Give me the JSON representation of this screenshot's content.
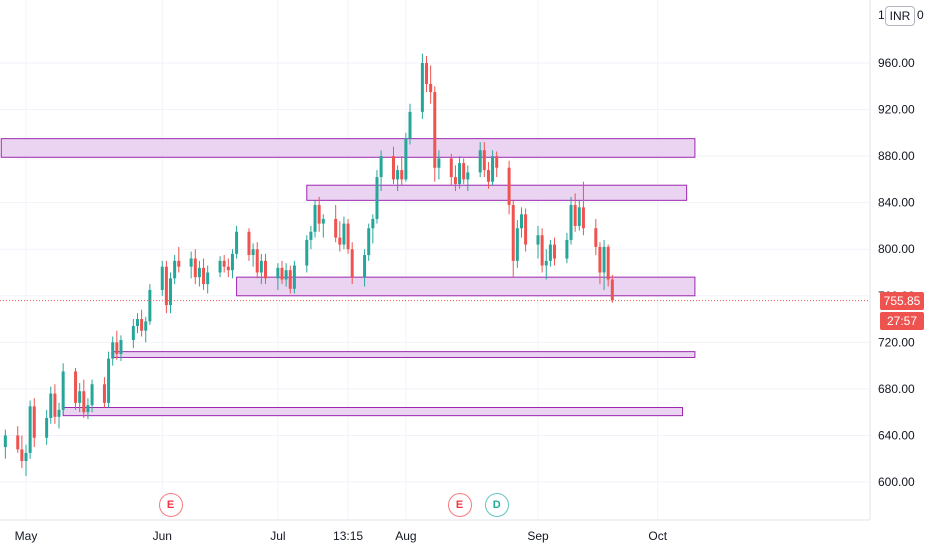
{
  "currency": "INR",
  "last_price_label": "755.85",
  "countdown_label": "27:57",
  "axis_top_partial": "1",
  "axis_top_partial_right": "0",
  "colors": {
    "up": "#26a69a",
    "down": "#ef5350",
    "zone_fill": "#e7cdee",
    "zone_border": "#9c27b0",
    "grid": "#f0f3fa"
  },
  "events": [
    {
      "label": "E",
      "type": "earnings",
      "x": "Jun 5"
    },
    {
      "label": "E",
      "type": "earnings",
      "x": "Aug 14"
    },
    {
      "label": "D",
      "type": "dividend",
      "x": "Aug 23"
    }
  ],
  "chart_data": {
    "type": "candlestick",
    "ylim": [
      584,
      975
    ],
    "y_ticks": [
      600,
      640,
      680,
      720,
      760,
      800,
      840,
      880,
      920,
      960
    ],
    "y_tick_labels": [
      "600.00",
      "640.00",
      "680.00",
      "720.00",
      "760.00",
      "800.00",
      "840.00",
      "880.00",
      "920.00",
      "960.00"
    ],
    "x_labels": [
      "May",
      "Jun",
      "Jul",
      "13:15",
      "Aug",
      "Sep",
      "Oct"
    ],
    "last_price": 755.85,
    "zones": [
      {
        "from": "Apr 25",
        "to": "Oct 10",
        "low": 879,
        "high": 895
      },
      {
        "from": "Jul 8",
        "to": "Oct 8",
        "low": 842,
        "high": 855
      },
      {
        "from": "Jun 21",
        "to": "Oct 10",
        "low": 760,
        "high": 776
      },
      {
        "from": "May 22",
        "to": "Oct 10",
        "low": 707,
        "high": 712
      },
      {
        "from": "May 10",
        "to": "Oct 7",
        "low": 657,
        "high": 664
      }
    ],
    "candles": [
      {
        "d": "Apr 26",
        "o": 630,
        "h": 645,
        "l": 620,
        "c": 640
      },
      {
        "d": "Apr 29",
        "o": 640,
        "h": 648,
        "l": 625,
        "c": 628
      },
      {
        "d": "Apr 30",
        "o": 628,
        "h": 640,
        "l": 612,
        "c": 618
      },
      {
        "d": "May 1",
        "o": 618,
        "h": 632,
        "l": 605,
        "c": 625
      },
      {
        "d": "May 2",
        "o": 625,
        "h": 670,
        "l": 620,
        "c": 665
      },
      {
        "d": "May 3",
        "o": 665,
        "h": 672,
        "l": 630,
        "c": 638
      },
      {
        "d": "May 6",
        "o": 638,
        "h": 662,
        "l": 632,
        "c": 655
      },
      {
        "d": "May 7",
        "o": 655,
        "h": 682,
        "l": 650,
        "c": 676
      },
      {
        "d": "May 8",
        "o": 676,
        "h": 684,
        "l": 650,
        "c": 656
      },
      {
        "d": "May 9",
        "o": 656,
        "h": 668,
        "l": 646,
        "c": 662
      },
      {
        "d": "May 10",
        "o": 662,
        "h": 702,
        "l": 658,
        "c": 695
      },
      {
        "d": "May 13",
        "o": 695,
        "h": 698,
        "l": 662,
        "c": 668
      },
      {
        "d": "May 14",
        "o": 668,
        "h": 685,
        "l": 660,
        "c": 678
      },
      {
        "d": "May 15",
        "o": 678,
        "h": 688,
        "l": 655,
        "c": 660
      },
      {
        "d": "May 16",
        "o": 660,
        "h": 672,
        "l": 654,
        "c": 666
      },
      {
        "d": "May 17",
        "o": 666,
        "h": 688,
        "l": 660,
        "c": 684
      },
      {
        "d": "May 20",
        "o": 684,
        "h": 690,
        "l": 664,
        "c": 668
      },
      {
        "d": "May 21",
        "o": 668,
        "h": 712,
        "l": 664,
        "c": 706
      },
      {
        "d": "May 22",
        "o": 706,
        "h": 725,
        "l": 700,
        "c": 720
      },
      {
        "d": "May 23",
        "o": 720,
        "h": 730,
        "l": 705,
        "c": 710
      },
      {
        "d": "May 24",
        "o": 710,
        "h": 726,
        "l": 704,
        "c": 722
      },
      {
        "d": "May 27",
        "o": 722,
        "h": 740,
        "l": 715,
        "c": 734
      },
      {
        "d": "May 28",
        "o": 734,
        "h": 745,
        "l": 728,
        "c": 740
      },
      {
        "d": "May 29",
        "o": 740,
        "h": 748,
        "l": 725,
        "c": 730
      },
      {
        "d": "May 30",
        "o": 730,
        "h": 742,
        "l": 720,
        "c": 738
      },
      {
        "d": "May 31",
        "o": 738,
        "h": 770,
        "l": 735,
        "c": 765
      },
      {
        "d": "Jun 3",
        "o": 765,
        "h": 790,
        "l": 760,
        "c": 785
      },
      {
        "d": "Jun 4",
        "o": 785,
        "h": 790,
        "l": 745,
        "c": 752
      },
      {
        "d": "Jun 5",
        "o": 752,
        "h": 780,
        "l": 745,
        "c": 775
      },
      {
        "d": "Jun 6",
        "o": 775,
        "h": 795,
        "l": 770,
        "c": 790
      },
      {
        "d": "Jun 7",
        "o": 790,
        "h": 802,
        "l": 780,
        "c": 785
      },
      {
        "d": "Jun 10",
        "o": 785,
        "h": 798,
        "l": 775,
        "c": 792
      },
      {
        "d": "Jun 11",
        "o": 792,
        "h": 800,
        "l": 770,
        "c": 776
      },
      {
        "d": "Jun 12",
        "o": 776,
        "h": 790,
        "l": 768,
        "c": 784
      },
      {
        "d": "Jun 13",
        "o": 784,
        "h": 792,
        "l": 765,
        "c": 770
      },
      {
        "d": "Jun 14",
        "o": 770,
        "h": 786,
        "l": 762,
        "c": 780
      },
      {
        "d": "Jun 17",
        "o": 780,
        "h": 794,
        "l": 776,
        "c": 790
      },
      {
        "d": "Jun 18",
        "o": 790,
        "h": 795,
        "l": 780,
        "c": 785
      },
      {
        "d": "Jun 19",
        "o": 785,
        "h": 792,
        "l": 776,
        "c": 782
      },
      {
        "d": "Jun 20",
        "o": 782,
        "h": 800,
        "l": 775,
        "c": 796
      },
      {
        "d": "Jun 21",
        "o": 796,
        "h": 820,
        "l": 792,
        "c": 815
      },
      {
        "d": "Jun 24",
        "o": 815,
        "h": 818,
        "l": 790,
        "c": 795
      },
      {
        "d": "Jun 25",
        "o": 795,
        "h": 805,
        "l": 785,
        "c": 800
      },
      {
        "d": "Jun 26",
        "o": 800,
        "h": 806,
        "l": 775,
        "c": 780
      },
      {
        "d": "Jun 27",
        "o": 780,
        "h": 796,
        "l": 770,
        "c": 790
      },
      {
        "d": "Jun 28",
        "o": 790,
        "h": 796,
        "l": 770,
        "c": 775
      },
      {
        "d": "Jul 1",
        "o": 775,
        "h": 788,
        "l": 765,
        "c": 784
      },
      {
        "d": "Jul 2",
        "o": 784,
        "h": 790,
        "l": 770,
        "c": 774
      },
      {
        "d": "Jul 3",
        "o": 774,
        "h": 788,
        "l": 768,
        "c": 782
      },
      {
        "d": "Jul 4",
        "o": 782,
        "h": 786,
        "l": 762,
        "c": 766
      },
      {
        "d": "Jul 5",
        "o": 766,
        "h": 790,
        "l": 762,
        "c": 786
      },
      {
        "d": "Jul 8",
        "o": 786,
        "h": 812,
        "l": 780,
        "c": 808
      },
      {
        "d": "Jul 9",
        "o": 808,
        "h": 820,
        "l": 800,
        "c": 815
      },
      {
        "d": "Jul 10",
        "o": 815,
        "h": 842,
        "l": 810,
        "c": 838
      },
      {
        "d": "Jul 11",
        "o": 838,
        "h": 845,
        "l": 815,
        "c": 822
      },
      {
        "d": "Jul 12",
        "o": 822,
        "h": 830,
        "l": 810,
        "c": 826
      },
      {
        "d": "Jul 15",
        "o": 826,
        "h": 838,
        "l": 806,
        "c": 810
      },
      {
        "d": "Jul 16",
        "o": 810,
        "h": 824,
        "l": 798,
        "c": 804
      },
      {
        "d": "Jul 17",
        "o": 804,
        "h": 828,
        "l": 800,
        "c": 822
      },
      {
        "d": "Jul 18",
        "o": 822,
        "h": 826,
        "l": 796,
        "c": 800
      },
      {
        "d": "Jul 19",
        "o": 800,
        "h": 806,
        "l": 770,
        "c": 776
      },
      {
        "d": "Jul 22",
        "o": 776,
        "h": 800,
        "l": 768,
        "c": 795
      },
      {
        "d": "Jul 23",
        "o": 795,
        "h": 822,
        "l": 790,
        "c": 818
      },
      {
        "d": "Jul 24",
        "o": 818,
        "h": 830,
        "l": 805,
        "c": 826
      },
      {
        "d": "Jul 25",
        "o": 826,
        "h": 868,
        "l": 822,
        "c": 862
      },
      {
        "d": "Jul 26",
        "o": 862,
        "h": 885,
        "l": 850,
        "c": 880
      },
      {
        "d": "Jul 29",
        "o": 880,
        "h": 888,
        "l": 856,
        "c": 860
      },
      {
        "d": "Jul 30",
        "o": 860,
        "h": 872,
        "l": 850,
        "c": 868
      },
      {
        "d": "Jul 31",
        "o": 868,
        "h": 880,
        "l": 855,
        "c": 860
      },
      {
        "d": "Aug 1",
        "o": 860,
        "h": 900,
        "l": 858,
        "c": 895
      },
      {
        "d": "Aug 2",
        "o": 895,
        "h": 925,
        "l": 890,
        "c": 918
      },
      {
        "d": "Aug 5",
        "o": 918,
        "h": 968,
        "l": 912,
        "c": 960
      },
      {
        "d": "Aug 6",
        "o": 960,
        "h": 966,
        "l": 935,
        "c": 942
      },
      {
        "d": "Aug 7",
        "o": 942,
        "h": 958,
        "l": 925,
        "c": 935
      },
      {
        "d": "Aug 8",
        "o": 935,
        "h": 940,
        "l": 858,
        "c": 870
      },
      {
        "d": "Aug 9",
        "o": 870,
        "h": 885,
        "l": 860,
        "c": 878
      },
      {
        "d": "Aug 12",
        "o": 878,
        "h": 882,
        "l": 855,
        "c": 862
      },
      {
        "d": "Aug 13",
        "o": 862,
        "h": 872,
        "l": 850,
        "c": 856
      },
      {
        "d": "Aug 14",
        "o": 856,
        "h": 880,
        "l": 852,
        "c": 874
      },
      {
        "d": "Aug 15",
        "o": 874,
        "h": 878,
        "l": 856,
        "c": 860
      },
      {
        "d": "Aug 16",
        "o": 860,
        "h": 872,
        "l": 850,
        "c": 866
      },
      {
        "d": "Aug 19",
        "o": 866,
        "h": 892,
        "l": 862,
        "c": 885
      },
      {
        "d": "Aug 20",
        "o": 885,
        "h": 892,
        "l": 862,
        "c": 868
      },
      {
        "d": "Aug 21",
        "o": 868,
        "h": 875,
        "l": 852,
        "c": 858
      },
      {
        "d": "Aug 22",
        "o": 858,
        "h": 885,
        "l": 855,
        "c": 880
      },
      {
        "d": "Aug 23",
        "o": 880,
        "h": 884,
        "l": 862,
        "c": 870
      },
      {
        "d": "Aug 26",
        "o": 870,
        "h": 876,
        "l": 830,
        "c": 838
      },
      {
        "d": "Aug 27",
        "o": 838,
        "h": 842,
        "l": 776,
        "c": 790
      },
      {
        "d": "Aug 28",
        "o": 790,
        "h": 825,
        "l": 784,
        "c": 818
      },
      {
        "d": "Aug 29",
        "o": 818,
        "h": 836,
        "l": 810,
        "c": 830
      },
      {
        "d": "Aug 30",
        "o": 830,
        "h": 835,
        "l": 798,
        "c": 804
      },
      {
        "d": "Sep 2",
        "o": 804,
        "h": 820,
        "l": 792,
        "c": 812
      },
      {
        "d": "Sep 3",
        "o": 812,
        "h": 818,
        "l": 780,
        "c": 786
      },
      {
        "d": "Sep 4",
        "o": 786,
        "h": 800,
        "l": 774,
        "c": 790
      },
      {
        "d": "Sep 5",
        "o": 790,
        "h": 808,
        "l": 785,
        "c": 804
      },
      {
        "d": "Sep 6",
        "o": 804,
        "h": 810,
        "l": 786,
        "c": 792
      },
      {
        "d": "Sep 9",
        "o": 792,
        "h": 814,
        "l": 788,
        "c": 808
      },
      {
        "d": "Sep 10",
        "o": 808,
        "h": 845,
        "l": 804,
        "c": 838
      },
      {
        "d": "Sep 11",
        "o": 838,
        "h": 848,
        "l": 815,
        "c": 820
      },
      {
        "d": "Sep 12",
        "o": 820,
        "h": 842,
        "l": 816,
        "c": 836
      },
      {
        "d": "Sep 13",
        "o": 836,
        "h": 858,
        "l": 812,
        "c": 818
      },
      {
        "d": "Sep 16",
        "o": 818,
        "h": 826,
        "l": 795,
        "c": 802
      },
      {
        "d": "Sep 17",
        "o": 802,
        "h": 806,
        "l": 770,
        "c": 780
      },
      {
        "d": "Sep 18",
        "o": 780,
        "h": 808,
        "l": 765,
        "c": 802
      },
      {
        "d": "Sep 19",
        "o": 802,
        "h": 804,
        "l": 768,
        "c": 774
      },
      {
        "d": "Sep 20",
        "o": 774,
        "h": 778,
        "l": 754,
        "c": 756
      }
    ]
  }
}
